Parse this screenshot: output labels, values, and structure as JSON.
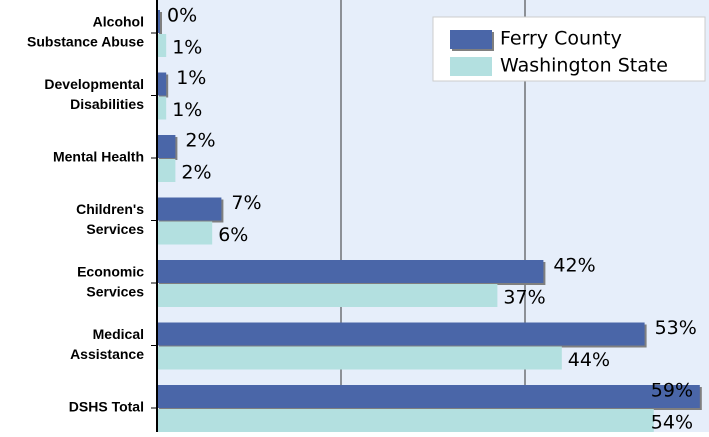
{
  "chart_data": {
    "type": "hbar",
    "categories": [
      [
        "Alcohol",
        "Substance Abuse"
      ],
      [
        "Developmental",
        "Disabilities"
      ],
      [
        "Mental Health"
      ],
      [
        "Children's",
        "Services"
      ],
      [
        "Economic",
        "Services"
      ],
      [
        "Medical",
        "Assistance"
      ],
      [
        "DSHS Total"
      ]
    ],
    "series": [
      {
        "name": "Ferry County",
        "color": "#4a66a8",
        "values": [
          0,
          1,
          2,
          7,
          42,
          53,
          59
        ],
        "value_labels": [
          "0%",
          "1%",
          "2%",
          "7%",
          "42%",
          "53%",
          "59%"
        ]
      },
      {
        "name": "Washington State",
        "color": "#b3e0e0",
        "values": [
          1,
          1,
          2,
          6,
          37,
          44,
          54
        ],
        "value_labels": [
          "1%",
          "1%",
          "2%",
          "6%",
          "37%",
          "44%",
          "54%"
        ]
      }
    ],
    "xlim": [
      0,
      60
    ],
    "xticks": [
      20,
      40
    ],
    "grid": true,
    "legend": "top-right"
  }
}
